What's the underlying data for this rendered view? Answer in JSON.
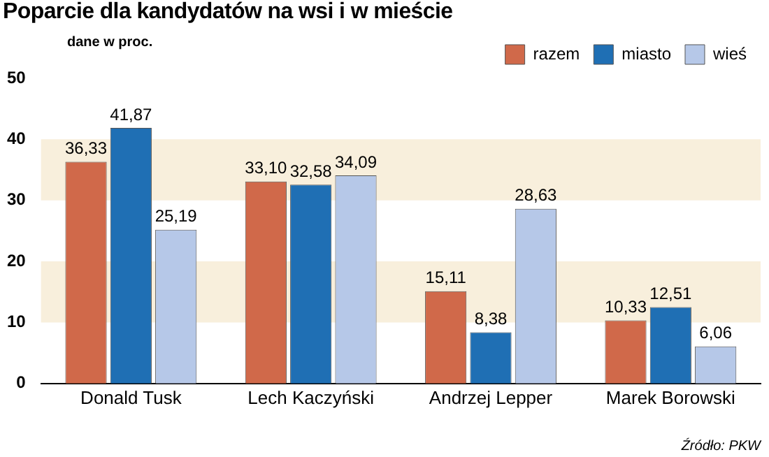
{
  "chart_data": {
    "type": "bar",
    "title": "Poparcie dla kandydatów na wsi i w mieście",
    "annotations": [
      "dane w proc.",
      "Źródło: PKW"
    ],
    "categories": [
      "Donald Tusk",
      "Lech Kaczyński",
      "Andrzej Lepper",
      "Marek Borowski"
    ],
    "series": [
      {
        "name": "razem",
        "color": "#d0694a",
        "values": [
          36.33,
          33.1,
          15.11,
          10.33
        ],
        "value_labels": [
          "36,33",
          "33,10",
          "15,11",
          "10,33"
        ]
      },
      {
        "name": "miasto",
        "color": "#1f6fb4",
        "values": [
          41.87,
          32.58,
          8.38,
          12.51
        ],
        "value_labels": [
          "41,87",
          "32,58",
          "8,38",
          "12,51"
        ]
      },
      {
        "name": "wieś",
        "color": "#b6c8e8",
        "values": [
          25.19,
          34.09,
          28.63,
          6.06
        ],
        "value_labels": [
          "25,19",
          "34,09",
          "28,63",
          "6,06"
        ]
      }
    ],
    "ylim": [
      0,
      50
    ],
    "yticks": [
      0,
      10,
      20,
      30,
      40,
      50
    ],
    "bands": [
      {
        "axis": "y",
        "from": 10,
        "to": 20,
        "color": "#f8efdc"
      },
      {
        "axis": "y",
        "from": 30,
        "to": 40,
        "color": "#f8efdc"
      }
    ],
    "grid": false,
    "legend": "top right"
  }
}
